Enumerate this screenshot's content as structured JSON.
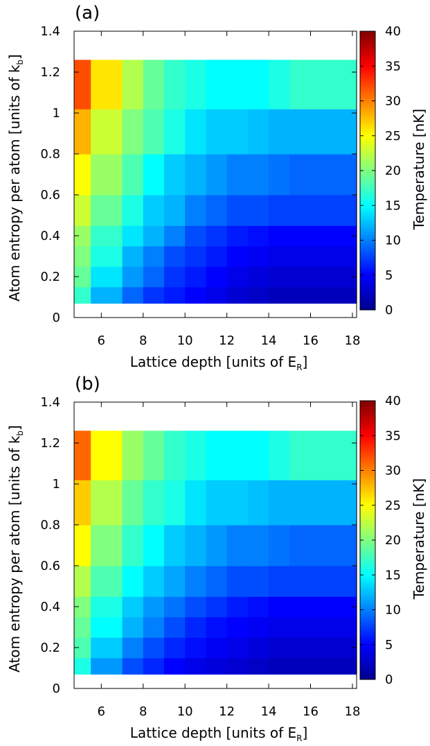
{
  "colorbar": {
    "colors": [
      "#00008f",
      "#0000ff",
      "#0080ff",
      "#00ffff",
      "#80ff80",
      "#ffff00",
      "#ff8000",
      "#ff0000",
      "#800000"
    ]
  },
  "chart_data": [
    {
      "type": "heatmap",
      "panel_label": "(a)",
      "xlabel_prefix": "Lattice depth [units of E",
      "xlabel_sub": "R",
      "xlabel_suffix": "]",
      "ylabel_prefix": "Atom entropy per atom [units of k",
      "ylabel_sub": "b",
      "ylabel_suffix": "]",
      "colorbar_label": "Temperature [nK]",
      "xlim": [
        4.7,
        18.2
      ],
      "ylim": [
        0,
        1.4
      ],
      "xticks": [
        6,
        8,
        10,
        12,
        14,
        16,
        18
      ],
      "yticks": [
        0,
        0.2,
        0.4,
        0.6,
        0.8,
        1,
        1.2,
        1.4
      ],
      "yticklabels": [
        "0",
        "0.2",
        "0.4",
        "0.6",
        "0.8",
        "1",
        "1.2",
        "1.4"
      ],
      "colorbar_range": [
        0,
        40
      ],
      "colorbar_ticks": [
        0,
        5,
        10,
        15,
        20,
        25,
        30,
        35,
        40
      ],
      "x_edges": [
        4.7,
        5.5,
        7.0,
        8.0,
        9.0,
        10.0,
        11.0,
        12.0,
        13.0,
        14.0,
        15.0,
        18.2
      ],
      "y_edges": [
        0.07,
        0.15,
        0.25,
        0.35,
        0.45,
        0.6,
        0.8,
        1.02,
        1.26
      ],
      "values": [
        [
          17,
          12,
          9,
          7,
          6,
          5,
          4,
          3,
          2.5,
          2,
          2
        ],
        [
          19,
          14,
          11,
          9,
          7,
          6,
          5,
          4,
          3.5,
          3,
          3
        ],
        [
          20,
          16,
          12,
          10,
          8,
          7,
          6,
          5,
          4.5,
          4,
          4
        ],
        [
          21,
          17,
          14,
          12,
          10,
          8,
          7,
          6,
          5.5,
          5,
          5
        ],
        [
          23,
          19,
          16,
          13,
          12,
          10,
          9,
          8,
          8,
          7.5,
          7.5
        ],
        [
          25,
          21,
          18,
          15,
          13,
          12,
          11,
          10,
          10,
          9.5,
          9
        ],
        [
          28,
          23,
          20,
          18,
          16,
          14,
          13,
          13,
          12.5,
          12,
          12
        ],
        [
          32,
          26,
          22,
          19,
          17,
          16,
          15,
          15,
          15,
          16,
          17
        ]
      ]
    },
    {
      "type": "heatmap",
      "panel_label": "(b)",
      "xlabel_prefix": "Lattice depth [units of E",
      "xlabel_sub": "R",
      "xlabel_suffix": "]",
      "ylabel_prefix": "Atom entropy per atom [units of k",
      "ylabel_sub": "b",
      "ylabel_suffix": "]",
      "colorbar_label": "Temperature [nK]",
      "xlim": [
        4.7,
        18.2
      ],
      "ylim": [
        0,
        1.4
      ],
      "xticks": [
        6,
        8,
        10,
        12,
        14,
        16,
        18
      ],
      "yticks": [
        0,
        0.2,
        0.4,
        0.6,
        0.8,
        1,
        1.2,
        1.4
      ],
      "yticklabels": [
        "0",
        "0.2",
        "0.4",
        "0.6",
        "0.8",
        "1",
        "1.2",
        "1.4"
      ],
      "colorbar_range": [
        0,
        40
      ],
      "colorbar_ticks": [
        0,
        5,
        10,
        15,
        20,
        25,
        30,
        35,
        40
      ],
      "x_edges": [
        4.7,
        5.5,
        7.0,
        8.0,
        9.0,
        10.0,
        11.0,
        12.0,
        13.0,
        14.0,
        15.0,
        18.2
      ],
      "y_edges": [
        0.07,
        0.15,
        0.25,
        0.35,
        0.45,
        0.6,
        0.8,
        1.02,
        1.26
      ],
      "values": [
        [
          16,
          11,
          8,
          6.5,
          5,
          4,
          3.5,
          3,
          2.5,
          2,
          2
        ],
        [
          18,
          13,
          10,
          8,
          6.5,
          5.5,
          4.5,
          4,
          3.5,
          3,
          3
        ],
        [
          19,
          15,
          12,
          10,
          8,
          6.5,
          5.5,
          5,
          4.5,
          4,
          4
        ],
        [
          20,
          16,
          13,
          11,
          9.5,
          8,
          7,
          6,
          5.5,
          5,
          5
        ],
        [
          22,
          18,
          15,
          13,
          11.5,
          10,
          9,
          8,
          8,
          7.5,
          7.5
        ],
        [
          25,
          20,
          17,
          15,
          13,
          12,
          11,
          10,
          10,
          9.5,
          9
        ],
        [
          27,
          22,
          19,
          17,
          16,
          14,
          13,
          13,
          12.5,
          12,
          12
        ],
        [
          31,
          25,
          21,
          19,
          17,
          16,
          15,
          15,
          15,
          16,
          17
        ]
      ]
    }
  ]
}
